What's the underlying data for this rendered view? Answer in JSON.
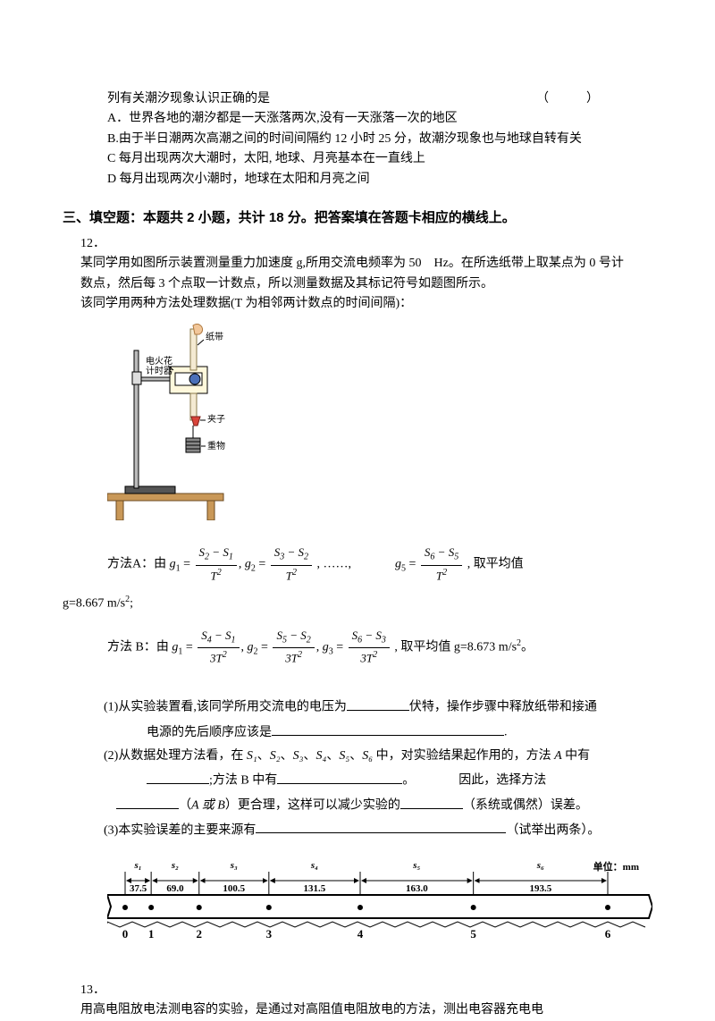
{
  "q11": {
    "lead": "列有关潮汐现象认识正确的是",
    "paren": "（　　　）",
    "A": "A．世界各地的潮汐都是一天涨落两次,没有一天涨落一次的地区",
    "B": "B.由于半日潮两次高潮之间的时间间隔约 12 小时 25 分，故潮汐现象也与地球自转有关",
    "C": "C 每月出现两次大潮时，太阳,  地球、月亮基本在一直线上",
    "D": "D 每月出现两次小潮时，地球在太阳和月亮之间"
  },
  "section3_title": "三、填空题：本题共 2 小题，共计 18 分。把答案填在答题卡相应的横线上。",
  "q12": {
    "num": "12．",
    "p1": "某同学用如图所示装置测量重力加速度 g,所用交流电频率为 50　Hz。在所选纸带上取某点为 0 号计数点，然后每 3 个点取一计数点，所以测量数据及其标记符号如题图所示。",
    "p2": "该同学用两种方法处理数据(T 为相邻两计数点的时间间隔)：",
    "methodA_label": "方法A：由",
    "g1": "g",
    "eq": " = ",
    "dots": ", ……, ",
    "methodA_tail": ", 取平均值",
    "gbar_val": "g=8.667 m/s",
    "methodB_label": "方法 B：由",
    "methodB_tail": ", 取平均值 g=8.673 m/s",
    "part1a": "(1)从实验装置看,该同学所用交流电的电压为",
    "part1b": "伏特，操作步骤中释放纸带和接通",
    "part1c": "电源的先后顺序应该是",
    "part1end": ".",
    "part2a": "(2)从数据处理方法看，在 ",
    "part2b": " 中，对实验结果起作用的，方法 ",
    "part2c": " 中有",
    "part2d": ";方法 B 中有",
    "part2e": "。　　　　因此，选择方法",
    "part2f": "（",
    "A_or_B": "A 或 B",
    "part2g": "）更合理，这样可以减少实验的",
    "part2h": "（系统或偶然）误差。",
    "part3a": "(3)本实验误差的主要来源有",
    "part3b": "（试举出两条）。",
    "S_syms": [
      "S₁",
      "S₂",
      "S₃",
      "S₄",
      "S₅",
      "S₆"
    ],
    "A_sym": "A"
  },
  "tape": {
    "unit": "单位：mm",
    "seg_labels": [
      "s₁",
      "s₂",
      "s₃",
      "s₄",
      "s₅",
      "s₆"
    ],
    "seg_values": [
      "37.5",
      "69.0",
      "100.5",
      "131.5",
      "163.0",
      "193.5"
    ],
    "dots": [
      "0",
      "1",
      "2",
      "3",
      "4",
      "5",
      "6"
    ],
    "bg_color": "#ffffff",
    "line_color": "#000000",
    "fontsize": 11
  },
  "q13": {
    "num": "13．",
    "text": "用高电阻放电法测电容的实验，是通过对高阻值电阻放电的方法，测出电容器充电电"
  },
  "diagram": {
    "labels": {
      "timer": "电火花\n计时器",
      "tape": "纸带",
      "clip": "夹子",
      "weight": "重物"
    },
    "colors": {
      "wood": "#c99858",
      "metal": "#888888",
      "blue": "#4a6fb8",
      "red": "#d9443a",
      "tape": "#f4ead2"
    }
  }
}
